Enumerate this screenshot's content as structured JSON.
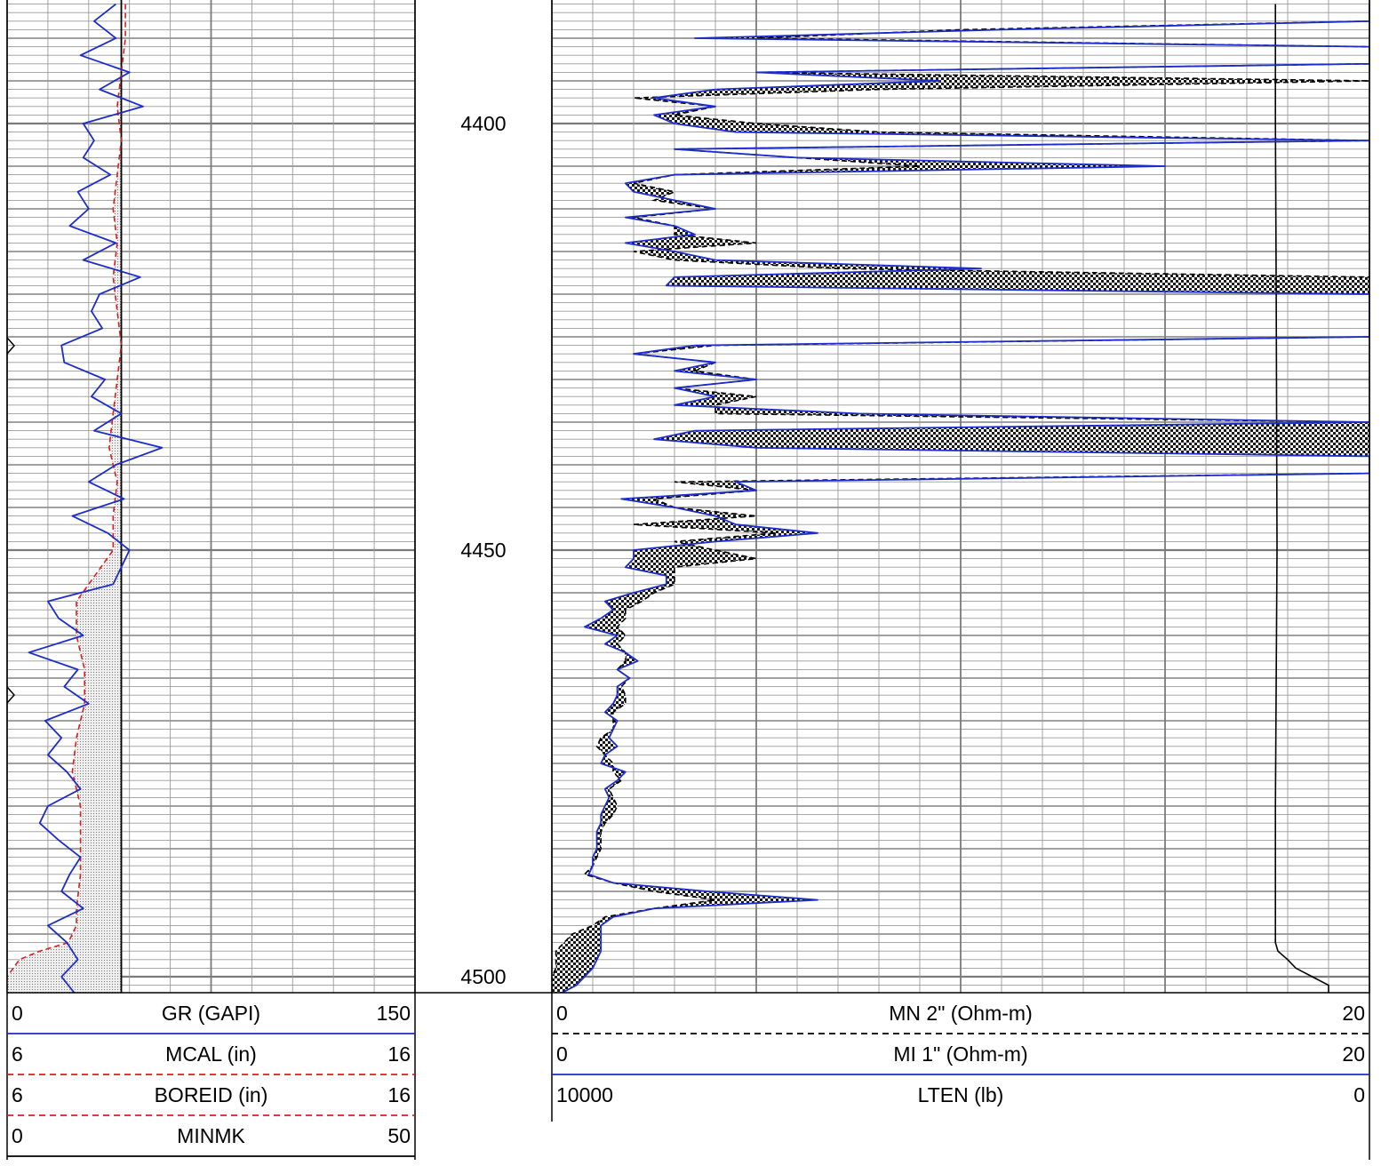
{
  "chart_data": {
    "type": "line",
    "depth": {
      "range": [
        4386,
        4502
      ],
      "major_every": 50,
      "labels": [
        "4400",
        "4450",
        "4500"
      ]
    },
    "grid": true,
    "tracks": [
      {
        "id": "track1",
        "curves": [
          {
            "name": "GR",
            "unit": "GAPI",
            "label": "GR (GAPI)",
            "min": "0",
            "max": "150",
            "range": [
              0,
              150
            ],
            "color": "#1c2ccc",
            "style": "solid",
            "depth": [
              4386,
              4388,
              4390,
              4392,
              4394,
              4396,
              4398,
              4400,
              4402,
              4404,
              4406,
              4408,
              4410,
              4412,
              4414,
              4416,
              4418,
              4420,
              4422,
              4424,
              4426,
              4428,
              4430,
              4432,
              4434,
              4436,
              4438,
              4440,
              4442,
              4444,
              4446,
              4448,
              4450,
              4452,
              4454,
              4456,
              4458,
              4460,
              4462,
              4464,
              4466,
              4468,
              4470,
              4472,
              4474,
              4476,
              4478,
              4480,
              4482,
              4484,
              4486,
              4488,
              4490,
              4492,
              4494,
              4496,
              4498,
              4500,
              4502
            ],
            "values": [
              40,
              32,
              40,
              27,
              45,
              34,
              50,
              28,
              32,
              28,
              38,
              26,
              30,
              23,
              40,
              28,
              49,
              34,
              31,
              35,
              20,
              21,
              36,
              31,
              42,
              32,
              57,
              40,
              30,
              43,
              24,
              37,
              45,
              42,
              39,
              15,
              19,
              28,
              8,
              26,
              21,
              30,
              14,
              20,
              15,
              22,
              27,
              15,
              12,
              19,
              27,
              23,
              20,
              28,
              15,
              22,
              26,
              20,
              25
            ]
          },
          {
            "name": "MCAL",
            "unit": "in",
            "label": "MCAL (in)",
            "min": "6",
            "max": "16",
            "range": [
              6,
              16
            ],
            "color": "#dd1c1c",
            "style": "dashed",
            "depth": [
              4386,
              4390,
              4394,
              4398,
              4402,
              4406,
              4410,
              4414,
              4418,
              4422,
              4426,
              4430,
              4434,
              4438,
              4442,
              4446,
              4450,
              4452,
              4454,
              4456,
              4460,
              4464,
              4468,
              4472,
              4476,
              4480,
              4484,
              4488,
              4492,
              4494,
              4496,
              4497,
              4498,
              4500,
              4502
            ],
            "values": [
              8.9,
              8.9,
              8.8,
              8.7,
              8.8,
              8.7,
              8.6,
              8.7,
              8.6,
              8.7,
              8.8,
              8.7,
              8.6,
              8.5,
              8.7,
              8.6,
              8.6,
              8.3,
              8.0,
              7.7,
              7.7,
              7.9,
              7.9,
              7.7,
              7.6,
              7.8,
              7.8,
              7.8,
              7.7,
              7.7,
              7.5,
              6.8,
              6.3,
              6.0,
              6.0
            ]
          },
          {
            "name": "BOREID",
            "unit": "in",
            "label": "BOREID (in)",
            "min": "6",
            "max": "16",
            "range": [
              6,
              16
            ],
            "color": "#dd1c1c",
            "style": "dashed",
            "bit_size": 8.8
          },
          {
            "name": "MINMK",
            "unit": "",
            "label": "MINMK",
            "min": "0",
            "max": "50",
            "range": [
              0,
              50
            ],
            "color": "#000000",
            "style": "solid"
          }
        ]
      },
      {
        "id": "track2",
        "curves": [
          {
            "name": "MN 2\"",
            "unit": "Ohm-m",
            "label": "MN 2\" (Ohm-m)",
            "min": "0",
            "max": "20",
            "range": [
              0,
              20
            ],
            "color": "#000000",
            "style": "dashed",
            "depth": [
              4386,
              4387,
              4388,
              4389,
              4390,
              4391,
              4392,
              4393,
              4394,
              4395,
              4396,
              4397,
              4398,
              4399,
              4400,
              4401,
              4402,
              4403,
              4404,
              4405,
              4406,
              4407,
              4408,
              4409,
              4410,
              4411,
              4412,
              4413,
              4414,
              4415,
              4416,
              4417,
              4418,
              4419,
              4420,
              4421,
              4422,
              4423,
              4424,
              4425,
              4426,
              4427,
              4428,
              4429,
              4430,
              4431,
              4432,
              4433,
              4434,
              4435,
              4436,
              4437,
              4438,
              4439,
              4440,
              4441,
              4442,
              4443,
              4444,
              4445,
              4446,
              4447,
              4448,
              4449,
              4450,
              4451,
              4452,
              4453,
              4454,
              4455,
              4456,
              4457,
              4458,
              4459,
              4460,
              4461,
              4462,
              4463,
              4464,
              4465,
              4466,
              4467,
              4468,
              4469,
              4470,
              4471,
              4472,
              4473,
              4474,
              4475,
              4476,
              4477,
              4478,
              4479,
              4480,
              4481,
              4482,
              4483,
              4484,
              4485,
              4486,
              4487,
              4488,
              4489,
              4490,
              4491,
              4492,
              4493,
              4494,
              4495,
              4496,
              4497,
              4498,
              4499,
              4500,
              4501,
              4502
            ],
            "values": [
              20,
              20,
              20,
              10,
              5,
              20,
              20,
              20,
              5,
              20,
              8,
              2,
              4,
              3,
              5,
              8,
              20,
              3,
              6,
              9,
              3,
              2,
              3,
              2.5,
              4,
              2,
              3,
              3,
              5,
              2,
              3,
              7,
              20,
              20,
              20,
              20,
              20,
              20,
              20,
              20,
              4,
              2,
              4,
              3.5,
              5,
              3,
              5,
              4,
              4,
              20,
              20,
              20,
              20,
              20,
              20,
              20,
              3,
              5,
              2.5,
              3,
              5,
              2,
              5.5,
              3,
              4,
              5,
              3,
              3,
              3,
              2.5,
              2.2,
              1.8,
              1.8,
              1.6,
              1.8,
              1.6,
              1.8,
              1.8,
              1.6,
              1.9,
              1.7,
              1.8,
              1.8,
              1.5,
              1.5,
              1.5,
              1.2,
              1.1,
              1.3,
              1.5,
              1.5,
              1.7,
              1.4,
              1.5,
              1.6,
              1.5,
              1.3,
              1.2,
              1.2,
              1.2,
              1.1,
              1,
              0.8,
              1.5,
              2.5,
              4,
              2.5,
              1.3,
              1,
              0.5,
              0.3,
              0.1,
              0.1,
              0.1,
              0,
              0,
              0,
              0,
              0
            ]
          },
          {
            "name": "MI 1\"",
            "unit": "Ohm-m",
            "label": "MI 1\" (Ohm-m)",
            "min": "0",
            "max": "20",
            "range": [
              0,
              20
            ],
            "color": "#1c2ccc",
            "style": "solid",
            "depth": [
              4386,
              4387,
              4388,
              4389,
              4390,
              4391,
              4392,
              4393,
              4394,
              4395,
              4396,
              4397,
              4398,
              4399,
              4400,
              4401,
              4402,
              4403,
              4404,
              4405,
              4406,
              4407,
              4408,
              4409,
              4410,
              4411,
              4412,
              4413,
              4414,
              4415,
              4416,
              4417,
              4418,
              4419,
              4420,
              4421,
              4422,
              4423,
              4424,
              4425,
              4426,
              4427,
              4428,
              4429,
              4430,
              4431,
              4432,
              4433,
              4434,
              4435,
              4436,
              4437,
              4438,
              4439,
              4440,
              4441,
              4442,
              4443,
              4444,
              4445,
              4446,
              4447,
              4448,
              4449,
              4450,
              4451,
              4452,
              4453,
              4454,
              4455,
              4456,
              4457,
              4458,
              4459,
              4460,
              4461,
              4462,
              4463,
              4464,
              4465,
              4466,
              4467,
              4468,
              4469,
              4470,
              4471,
              4472,
              4473,
              4474,
              4475,
              4476,
              4477,
              4478,
              4479,
              4480,
              4481,
              4482,
              4483,
              4484,
              4485,
              4486,
              4487,
              4488,
              4489,
              4490,
              4491,
              4492,
              4493,
              4494,
              4495,
              4496,
              4497,
              4498,
              4499,
              4500,
              4501,
              4502
            ],
            "values": [
              20,
              20,
              20,
              11,
              3.5,
              20,
              20,
              20,
              5,
              9.5,
              4,
              2.5,
              4,
              2.5,
              3,
              4.5,
              20,
              3,
              6,
              15,
              3,
              1.8,
              2,
              3,
              4,
              1.8,
              3,
              3.5,
              1.8,
              3,
              4,
              10.5,
              3,
              2.8,
              20,
              20,
              20,
              20,
              20,
              20,
              3.5,
              2,
              4,
              3,
              5,
              3,
              4,
              3,
              7.5,
              20,
              3.5,
              2.5,
              5,
              20,
              20,
              20,
              4.5,
              5,
              1.7,
              3,
              4,
              4.5,
              6.5,
              4,
              2,
              2,
              1.8,
              2.8,
              2.8,
              2,
              1.3,
              1.5,
              1.2,
              0.8,
              1.6,
              1.3,
              1.8,
              2.1,
              1.6,
              1.9,
              1.6,
              1.6,
              1.5,
              1.3,
              1.6,
              1.5,
              1.4,
              1.6,
              1.3,
              1.2,
              1.8,
              1.6,
              1.3,
              1.4,
              1.3,
              1.2,
              1.2,
              1.1,
              1.1,
              1.1,
              1,
              1,
              0.9,
              1.5,
              3.8,
              6.5,
              2.5,
              1.5,
              1.2,
              1.2,
              1.2,
              1.2,
              1.1,
              1,
              0.8,
              0.6,
              0.2,
              0.2,
              0.1
            ]
          },
          {
            "name": "LTEN",
            "unit": "lb",
            "label": "LTEN (lb)",
            "min": "10000",
            "max": "0",
            "range": [
              10000,
              0
            ],
            "color": "#000000",
            "style": "solid",
            "depth": [
              4386,
              4400,
              4420,
              4450,
              4480,
              4496,
              4497,
              4498,
              4499,
              4500,
              4501,
              4502
            ],
            "values": [
              1150,
              1150,
              1140,
              1130,
              1150,
              1150,
              1120,
              1000,
              900,
              700,
              500,
              500
            ]
          }
        ]
      }
    ]
  }
}
